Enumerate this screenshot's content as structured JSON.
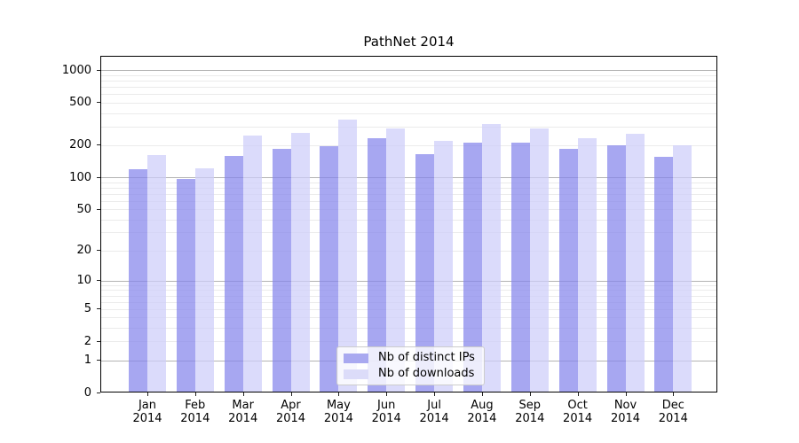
{
  "chart_data": {
    "type": "bar",
    "title": "PathNet 2014",
    "categories": [
      "Jan\n2014",
      "Feb\n2014",
      "Mar\n2014",
      "Apr\n2014",
      "May\n2014",
      "Jun\n2014",
      "Jul\n2014",
      "Aug\n2014",
      "Sep\n2014",
      "Oct\n2014",
      "Nov\n2014",
      "Dec\n2014"
    ],
    "series": [
      {
        "name": "Nb of distinct IPs",
        "color": "rgba(133,133,235,0.72)",
        "legend_color": "#a9a9f0",
        "values": [
          120,
          97,
          158,
          184,
          196,
          234,
          166,
          211,
          212,
          186,
          199,
          156
        ]
      },
      {
        "name": "Nb of downloads",
        "color": "rgba(205,205,249,0.72)",
        "legend_color": "#dcdcf9",
        "values": [
          163,
          122,
          244,
          260,
          349,
          289,
          221,
          317,
          286,
          232,
          254,
          199
        ]
      }
    ],
    "yscale": "log1p",
    "ylim": [
      0,
      1365
    ],
    "yticks": [
      0,
      1,
      2,
      5,
      10,
      20,
      50,
      100,
      200,
      500,
      1000
    ],
    "major_gridlines": [
      1,
      10,
      100,
      1000
    ],
    "minor_gridlines": [
      2,
      3,
      4,
      5,
      6,
      7,
      8,
      9,
      20,
      30,
      40,
      50,
      60,
      70,
      80,
      90,
      200,
      300,
      400,
      500,
      600,
      700,
      800,
      900
    ],
    "xlabel": "",
    "ylabel": "",
    "grid": "on",
    "legend_position": "lower-center"
  },
  "colors": {
    "bar_distinct_ips": "#a9a9f0",
    "bar_downloads": "#dcdcf9",
    "major_grid": "#b3b3b3",
    "minor_grid": "#ebebeb",
    "axis": "#000000"
  }
}
